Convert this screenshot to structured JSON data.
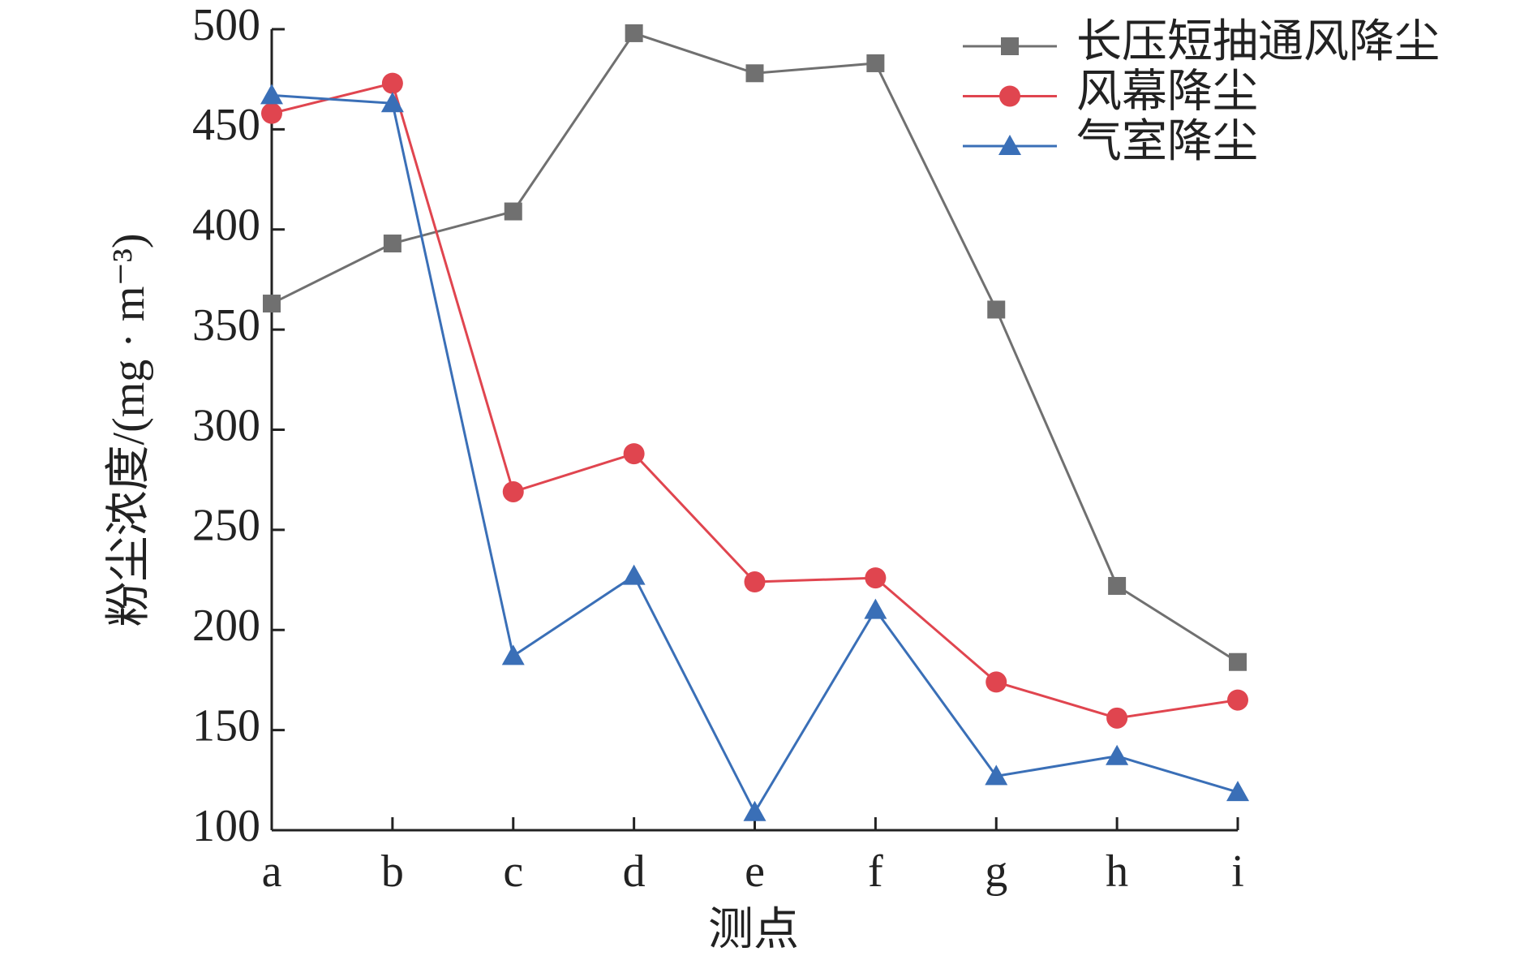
{
  "chart_data": {
    "type": "line",
    "x_label": "测点",
    "y_label": "粉尘浓度/(mg · m⁻³)",
    "categories": [
      "a",
      "b",
      "c",
      "d",
      "e",
      "f",
      "g",
      "h",
      "i"
    ],
    "series": [
      {
        "name": "长压短抽通风降尘",
        "color": "#707070",
        "marker": "square",
        "values": [
          363,
          393,
          409,
          498,
          478,
          483,
          360,
          222,
          184
        ]
      },
      {
        "name": "风幕降尘",
        "color": "#e0454f",
        "marker": "circle",
        "values": [
          458,
          473,
          269,
          288,
          224,
          226,
          174,
          156,
          165
        ]
      },
      {
        "name": "气室降尘",
        "color": "#3a6fb7",
        "marker": "triangle",
        "values": [
          467,
          463,
          187,
          227,
          109,
          210,
          127,
          137,
          119
        ]
      }
    ],
    "ylim": [
      100,
      500
    ],
    "yticks": [
      100,
      150,
      200,
      250,
      300,
      350,
      400,
      450,
      500
    ],
    "grid": false,
    "legend": "upper right"
  }
}
